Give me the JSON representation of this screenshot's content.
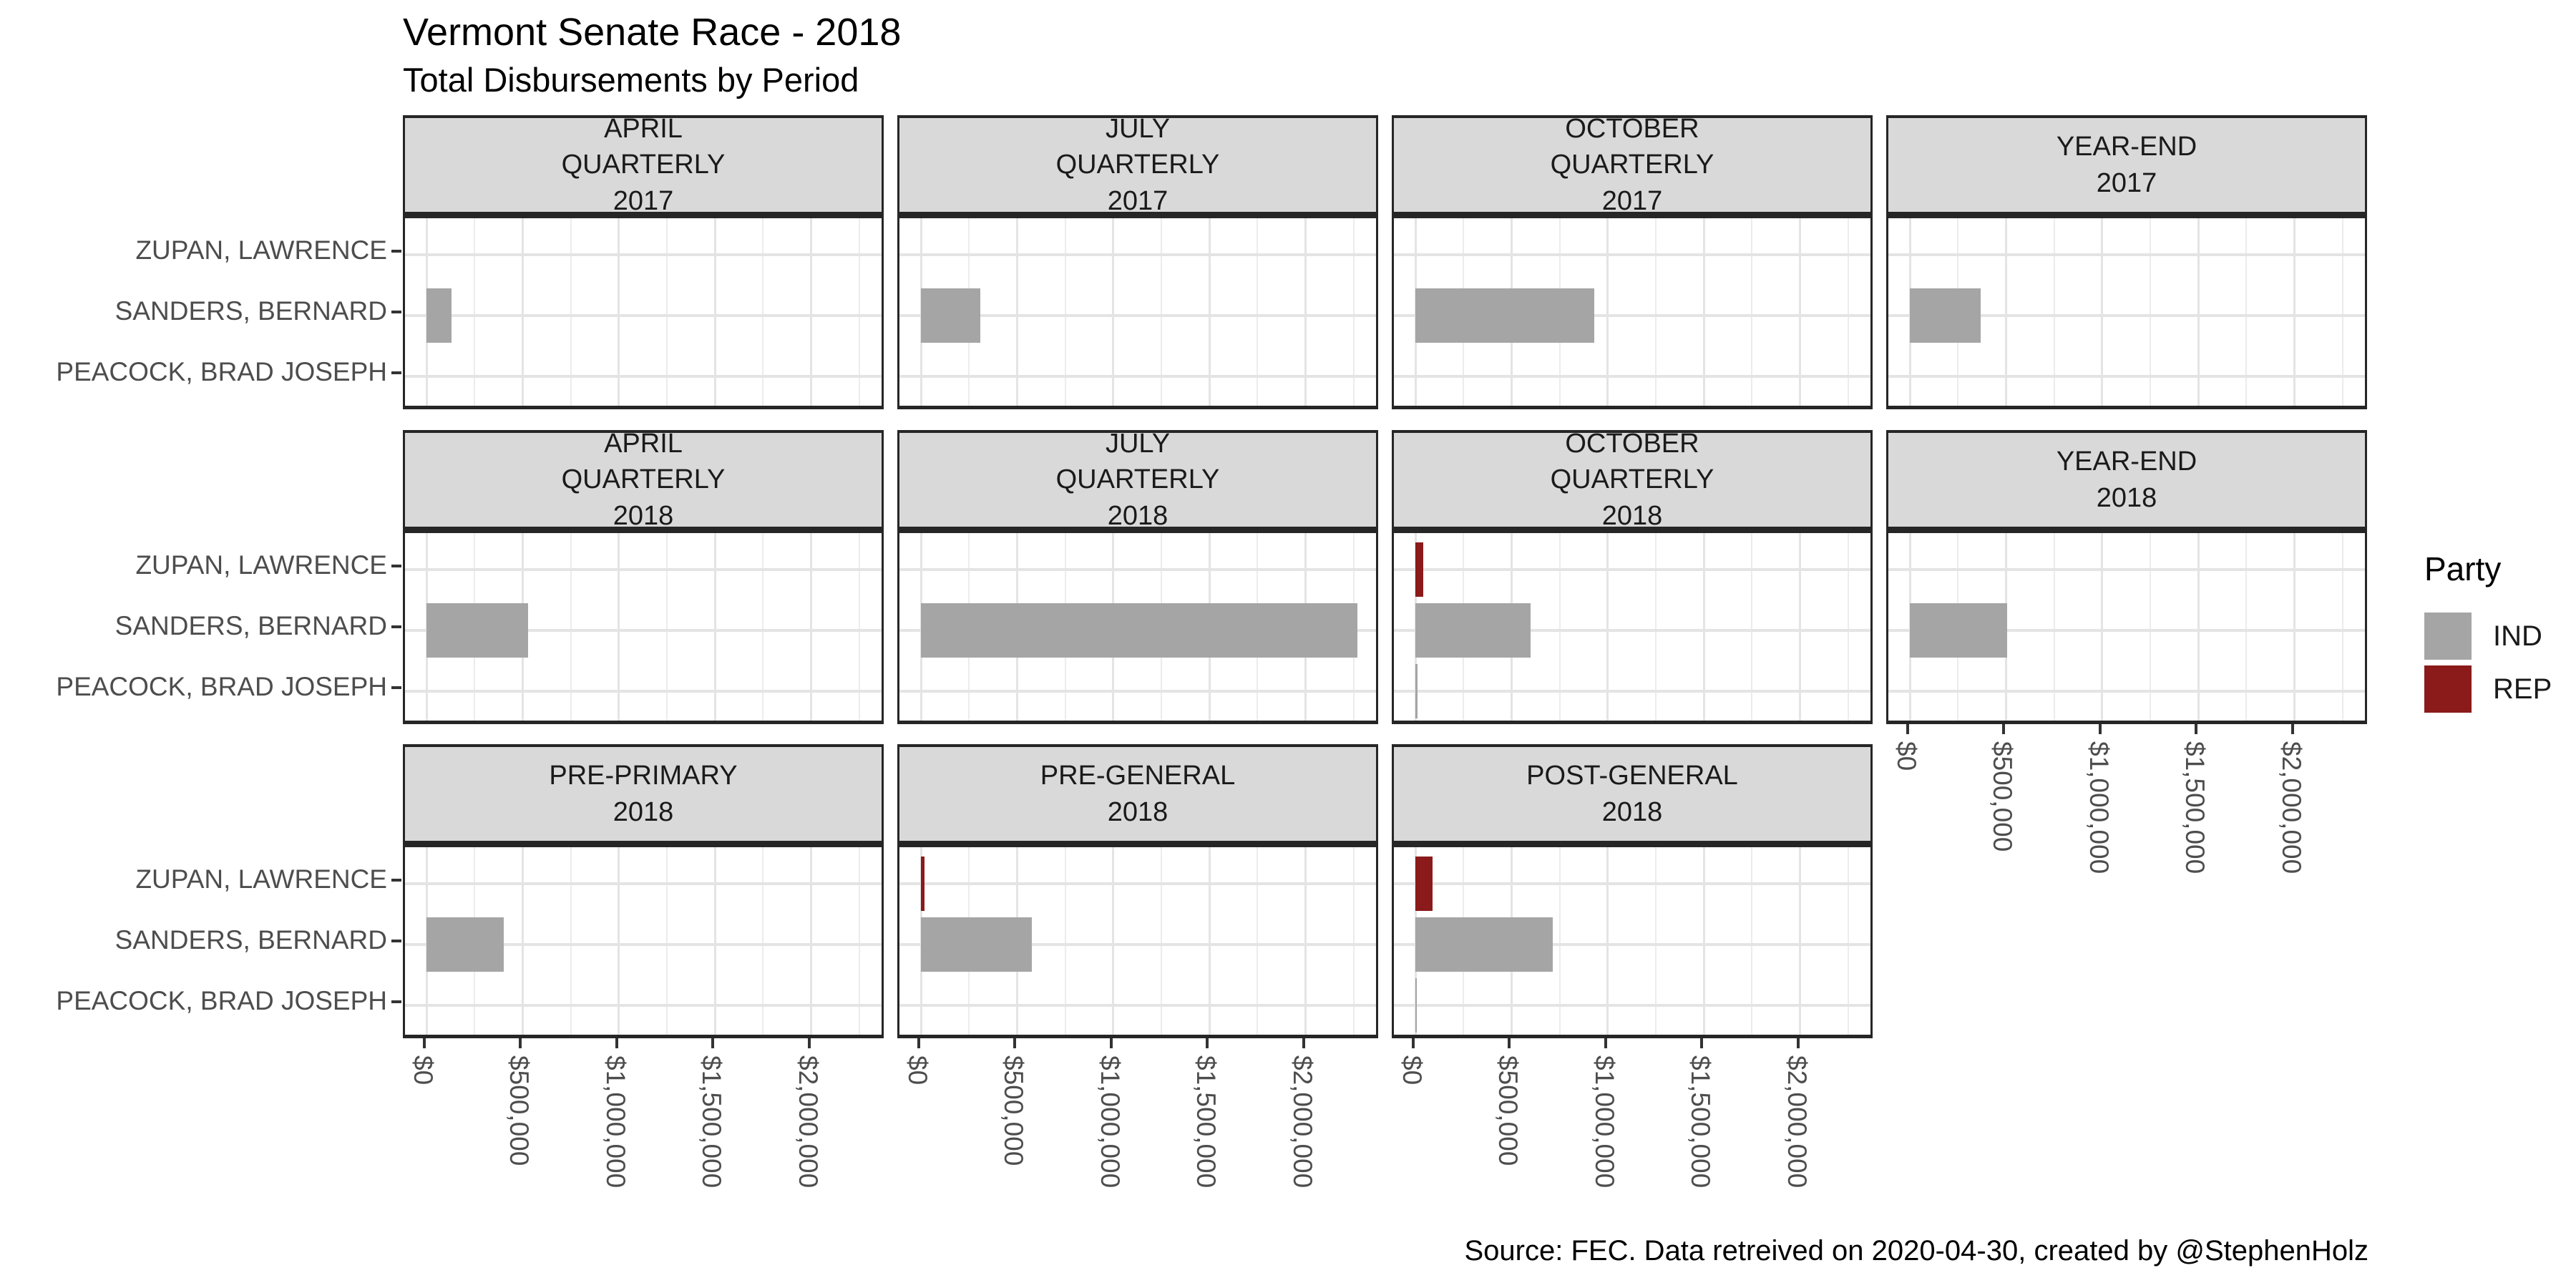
{
  "chart_data": {
    "type": "bar",
    "orientation": "horizontal",
    "title": "Vermont Senate Race - 2018",
    "subtitle": "Total Disbursements by Period",
    "caption": "Source: FEC. Data retreived on 2020-04-30, created by @StephenHolz",
    "candidates": [
      "ZUPAN, LAWRENCE",
      "SANDERS, BERNARD",
      "PEACOCK, BRAD JOSEPH"
    ],
    "legend": {
      "title": "Party",
      "entries": [
        {
          "label": "IND",
          "color": "#A5A5A5"
        },
        {
          "label": "REP",
          "color": "#8B1A1A"
        }
      ]
    },
    "x_axis": {
      "tick_labels": [
        "$0",
        "$500,000",
        "$1,000,000",
        "$1,500,000",
        "$2,000,000"
      ],
      "tick_values": [
        0,
        500000,
        1000000,
        1500000,
        2000000
      ],
      "minor_tick_values": [
        250000,
        750000,
        1250000,
        1750000,
        2250000
      ],
      "range_max": 2380000,
      "label_angle_degrees": -90
    },
    "grid": {
      "major_color": "#E4E4E4",
      "minor_color": "#ECECEC",
      "shown": true
    },
    "facets": [
      {
        "row": 0,
        "col": 0,
        "label": "APRIL\nQUARTERLY\n2017",
        "has_x_axis": false,
        "bars": [
          {
            "candidate": "SANDERS, BERNARD",
            "party": "IND",
            "value": 130000
          }
        ]
      },
      {
        "row": 0,
        "col": 1,
        "label": "JULY\nQUARTERLY\n2017",
        "has_x_axis": false,
        "bars": [
          {
            "candidate": "SANDERS, BERNARD",
            "party": "IND",
            "value": 310000
          }
        ]
      },
      {
        "row": 0,
        "col": 2,
        "label": "OCTOBER\nQUARTERLY\n2017",
        "has_x_axis": false,
        "bars": [
          {
            "candidate": "SANDERS, BERNARD",
            "party": "IND",
            "value": 930000
          }
        ]
      },
      {
        "row": 0,
        "col": 3,
        "label": "YEAR-END\n2017",
        "has_x_axis": false,
        "bars": [
          {
            "candidate": "SANDERS, BERNARD",
            "party": "IND",
            "value": 370000
          }
        ]
      },
      {
        "row": 1,
        "col": 0,
        "label": "APRIL\nQUARTERLY\n2018",
        "has_x_axis": false,
        "bars": [
          {
            "candidate": "SANDERS, BERNARD",
            "party": "IND",
            "value": 530000
          }
        ]
      },
      {
        "row": 1,
        "col": 1,
        "label": "JULY\nQUARTERLY\n2018",
        "has_x_axis": false,
        "bars": [
          {
            "candidate": "SANDERS, BERNARD",
            "party": "IND",
            "value": 2270000
          }
        ]
      },
      {
        "row": 1,
        "col": 2,
        "label": "OCTOBER\nQUARTERLY\n2018",
        "has_x_axis": false,
        "bars": [
          {
            "candidate": "ZUPAN, LAWRENCE",
            "party": "REP",
            "value": 40000
          },
          {
            "candidate": "SANDERS, BERNARD",
            "party": "IND",
            "value": 600000
          },
          {
            "candidate": "PEACOCK, BRAD JOSEPH",
            "party": "IND",
            "value": 10000
          }
        ]
      },
      {
        "row": 1,
        "col": 3,
        "label": "YEAR-END\n2018",
        "has_x_axis": true,
        "bars": [
          {
            "candidate": "SANDERS, BERNARD",
            "party": "IND",
            "value": 505000
          }
        ]
      },
      {
        "row": 2,
        "col": 0,
        "label": "PRE-PRIMARY\n2018",
        "has_x_axis": true,
        "bars": [
          {
            "candidate": "SANDERS, BERNARD",
            "party": "IND",
            "value": 400000
          }
        ]
      },
      {
        "row": 2,
        "col": 1,
        "label": "PRE-GENERAL\n2018",
        "has_x_axis": true,
        "bars": [
          {
            "candidate": "ZUPAN, LAWRENCE",
            "party": "REP",
            "value": 20000
          },
          {
            "candidate": "SANDERS, BERNARD",
            "party": "IND",
            "value": 575000
          }
        ]
      },
      {
        "row": 2,
        "col": 2,
        "label": "POST-GENERAL\n2018",
        "has_x_axis": true,
        "bars": [
          {
            "candidate": "ZUPAN, LAWRENCE",
            "party": "REP",
            "value": 90000
          },
          {
            "candidate": "SANDERS, BERNARD",
            "party": "IND",
            "value": 715000
          },
          {
            "candidate": "PEACOCK, BRAD JOSEPH",
            "party": "IND",
            "value": 8000
          }
        ]
      }
    ]
  }
}
